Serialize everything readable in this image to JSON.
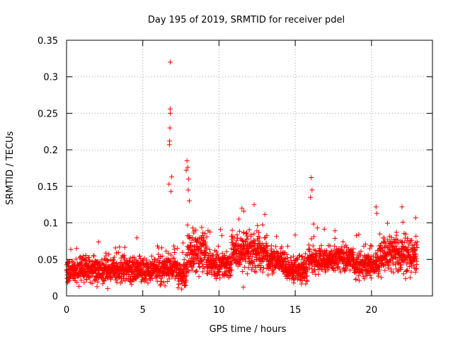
{
  "chart_data": {
    "type": "scatter",
    "title": "Day 195 of 2019, SRMTID for receiver pdel",
    "xlabel": "GPS time / hours",
    "ylabel": "SRMTID / TECUs",
    "xlim": [
      0,
      24
    ],
    "ylim": [
      0,
      0.35
    ],
    "xticks": [
      0,
      5,
      10,
      15,
      20
    ],
    "xtick_labels": [
      "0",
      "5",
      "10",
      "15",
      "20"
    ],
    "yticks": [
      0,
      0.05,
      0.1,
      0.15,
      0.2,
      0.25,
      0.3,
      0.35
    ],
    "ytick_labels": [
      "0",
      "0.05",
      "0.1",
      "0.15",
      "0.2",
      "0.25",
      "0.3",
      "0.35"
    ],
    "grid": true,
    "marker": "plus",
    "series": [
      {
        "name": "SRMTID",
        "color": "#ff0000",
        "points_note": "dense cloud of ~2800 samples from 0 to ~23 h; baseline ~0.02-0.06, spikes near 6.8 h (0.32) and 8 h (0.18), 12 h and 16 h (0.16)",
        "highlights": [
          {
            "x": 6.8,
            "y": 0.32
          },
          {
            "x": 6.8,
            "y": 0.256
          },
          {
            "x": 6.8,
            "y": 0.25
          },
          {
            "x": 6.78,
            "y": 0.23
          },
          {
            "x": 6.76,
            "y": 0.212
          },
          {
            "x": 6.75,
            "y": 0.207
          },
          {
            "x": 6.9,
            "y": 0.163
          },
          {
            "x": 6.72,
            "y": 0.153
          },
          {
            "x": 6.85,
            "y": 0.143
          },
          {
            "x": 7.9,
            "y": 0.185
          },
          {
            "x": 7.95,
            "y": 0.176
          },
          {
            "x": 7.85,
            "y": 0.172
          },
          {
            "x": 8.0,
            "y": 0.16
          },
          {
            "x": 7.98,
            "y": 0.145
          },
          {
            "x": 8.05,
            "y": 0.13
          },
          {
            "x": 16.05,
            "y": 0.162
          },
          {
            "x": 16.1,
            "y": 0.145
          },
          {
            "x": 16.0,
            "y": 0.135
          },
          {
            "x": 11.5,
            "y": 0.12
          },
          {
            "x": 12.3,
            "y": 0.125
          },
          {
            "x": 20.3,
            "y": 0.122
          },
          {
            "x": 20.35,
            "y": 0.113
          },
          {
            "x": 22.0,
            "y": 0.122
          },
          {
            "x": 22.9,
            "y": 0.107
          },
          {
            "x": 11.6,
            "y": 0.012
          },
          {
            "x": 2.7,
            "y": 0.01
          },
          {
            "x": 0.1,
            "y": 0.02
          }
        ]
      }
    ]
  }
}
